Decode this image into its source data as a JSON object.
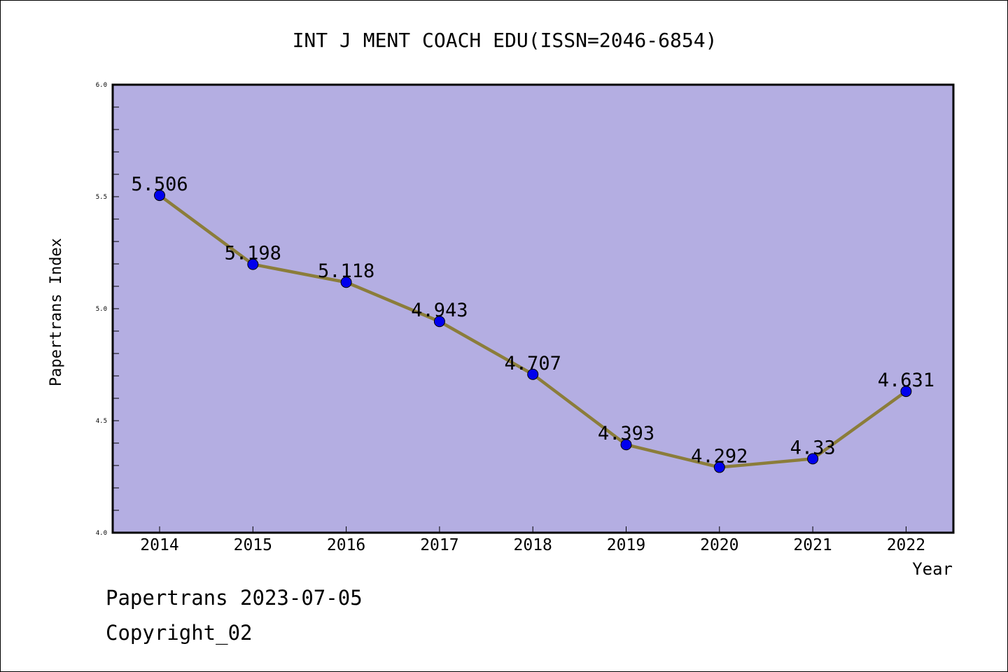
{
  "chart_data": {
    "type": "line",
    "title": "INT J MENT COACH EDU(ISSN=2046-6854)",
    "xlabel": "Year",
    "ylabel": "Papertrans Index",
    "categories": [
      "2014",
      "2015",
      "2016",
      "2017",
      "2018",
      "2019",
      "2020",
      "2021",
      "2022"
    ],
    "series": [
      {
        "values": [
          5.506,
          5.198,
          5.118,
          4.943,
          4.707,
          4.393,
          4.292,
          4.33,
          4.631
        ],
        "data_labels": [
          "5.506",
          "5.198",
          "5.118",
          "4.943",
          "4.707",
          "4.393",
          "4.292",
          "4.33",
          "4.631"
        ]
      }
    ],
    "ylim": [
      4.0,
      6.0
    ],
    "yticks": [
      "4.0",
      "4.5",
      "5.0",
      "5.5",
      "6.0"
    ],
    "grid": false,
    "colors": {
      "plot_background": "#b4aee2",
      "line": "#8b7d3a",
      "marker": "#0000ee"
    }
  },
  "footer": {
    "line1": "Papertrans 2023-07-05",
    "line2": "Copyright_02"
  }
}
